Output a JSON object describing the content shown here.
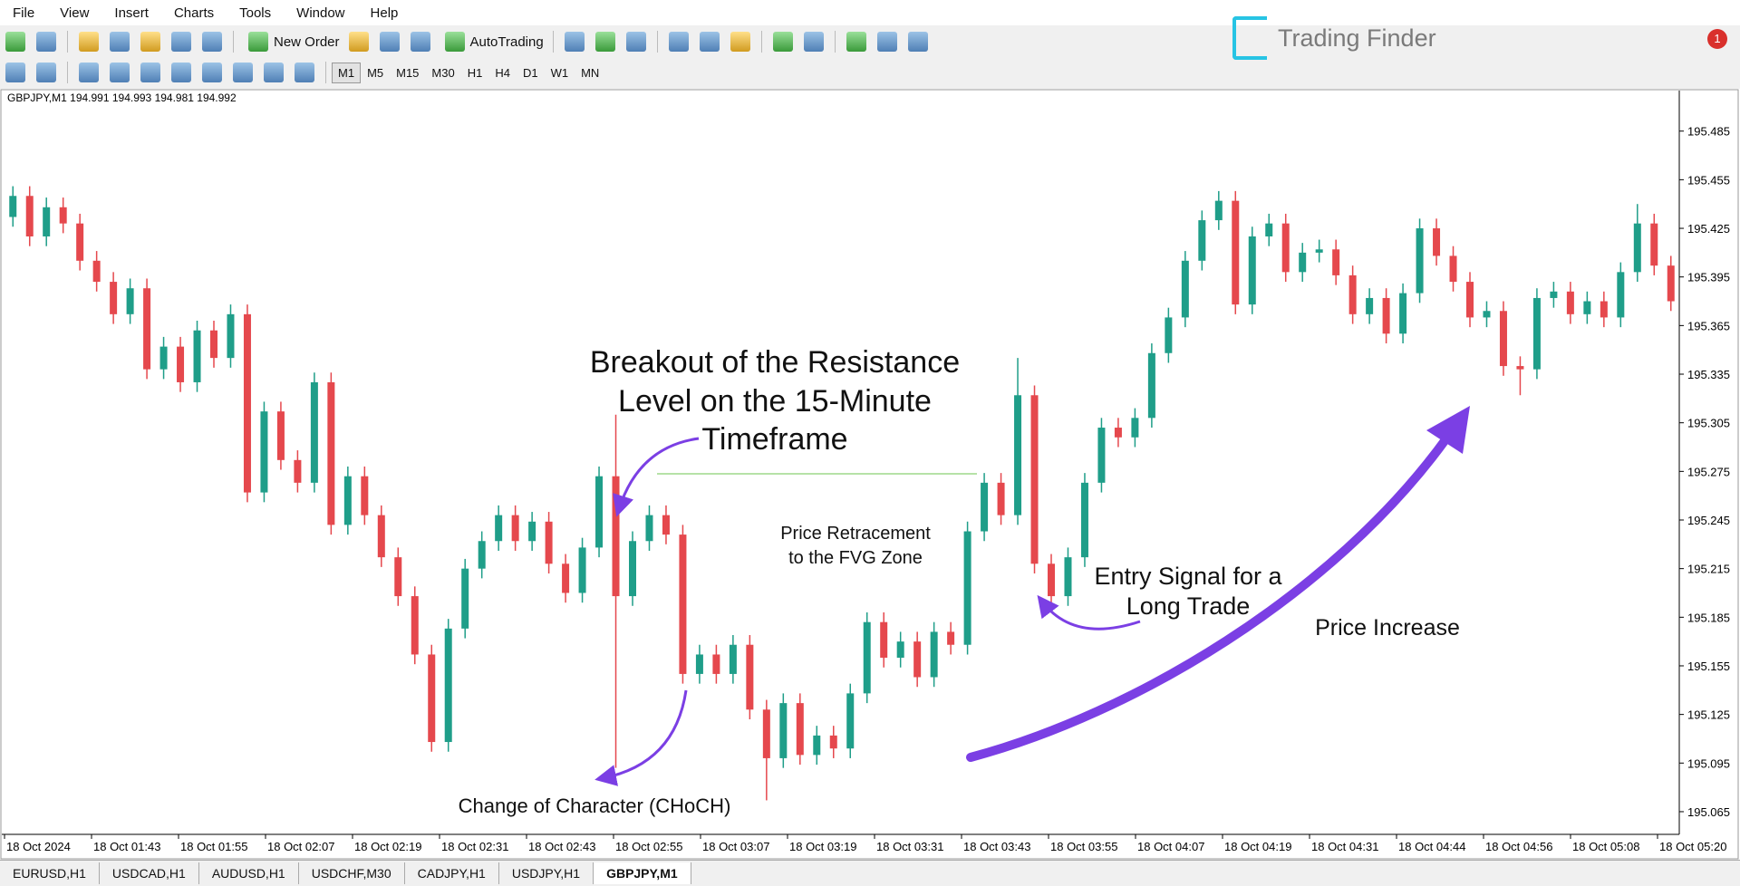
{
  "menu": [
    "File",
    "View",
    "Insert",
    "Charts",
    "Tools",
    "Window",
    "Help"
  ],
  "toolbar": {
    "new_order": "New Order",
    "auto_trading": "AutoTrading"
  },
  "timeframes": [
    "M1",
    "M5",
    "M15",
    "M30",
    "H1",
    "H4",
    "D1",
    "W1",
    "MN"
  ],
  "logo": "Trading Finder",
  "notification_count": "1",
  "chart_data": {
    "type": "candlestick",
    "header": "GBPJPY,M1  194.991 194.993 194.981 194.992",
    "bull_color": "#1f9e89",
    "bear_color": "#e5484d",
    "open": [
      195.432,
      195.445,
      195.42,
      195.438,
      195.428,
      195.405,
      195.392,
      195.372,
      195.388,
      195.338,
      195.352,
      195.33,
      195.362,
      195.345,
      195.372,
      195.262,
      195.312,
      195.282,
      195.268,
      195.33,
      195.242,
      195.272,
      195.248,
      195.222,
      195.198,
      195.162,
      195.108,
      195.178,
      195.215,
      195.232,
      195.248,
      195.232,
      195.244,
      195.218,
      195.2,
      195.228,
      195.272,
      195.198,
      195.232,
      195.248,
      195.236,
      195.15,
      195.162,
      195.15,
      195.168,
      195.128,
      195.098,
      195.132,
      195.1,
      195.112,
      195.104,
      195.138,
      195.182,
      195.16,
      195.17,
      195.148,
      195.176,
      195.168,
      195.238,
      195.268,
      195.248,
      195.322,
      195.218,
      195.198,
      195.222,
      195.268,
      195.302,
      195.296,
      195.308,
      195.348,
      195.37,
      195.405,
      195.43,
      195.442,
      195.378,
      195.42,
      195.428,
      195.398,
      195.41,
      195.412,
      195.396,
      195.372,
      195.382,
      195.36,
      195.385,
      195.425,
      195.408,
      195.392,
      195.37,
      195.374,
      195.34,
      195.338,
      195.382,
      195.386,
      195.372,
      195.38,
      195.37,
      195.398,
      195.428,
      195.402
    ],
    "high": [
      195.451,
      195.451,
      195.444,
      195.444,
      195.434,
      195.411,
      195.398,
      195.394,
      195.394,
      195.358,
      195.358,
      195.368,
      195.368,
      195.378,
      195.378,
      195.318,
      195.318,
      195.288,
      195.336,
      195.336,
      195.278,
      195.278,
      195.254,
      195.228,
      195.204,
      195.168,
      195.184,
      195.221,
      195.238,
      195.254,
      195.254,
      195.25,
      195.25,
      195.224,
      195.234,
      195.278,
      195.31,
      195.238,
      195.254,
      195.254,
      195.242,
      195.168,
      195.168,
      195.174,
      195.174,
      195.134,
      195.138,
      195.138,
      195.118,
      195.118,
      195.144,
      195.188,
      195.188,
      195.176,
      195.176,
      195.182,
      195.182,
      195.244,
      195.274,
      195.274,
      195.345,
      195.328,
      195.224,
      195.228,
      195.274,
      195.308,
      195.308,
      195.314,
      195.354,
      195.376,
      195.411,
      195.436,
      195.448,
      195.448,
      195.426,
      195.434,
      195.434,
      195.416,
      195.418,
      195.418,
      195.402,
      195.388,
      195.388,
      195.391,
      195.431,
      195.431,
      195.414,
      195.398,
      195.38,
      195.38,
      195.346,
      195.388,
      195.392,
      195.392,
      195.386,
      195.386,
      195.404,
      195.44,
      195.434,
      195.408
    ],
    "low": [
      195.426,
      195.414,
      195.414,
      195.422,
      195.399,
      195.386,
      195.366,
      195.366,
      195.332,
      195.332,
      195.324,
      195.324,
      195.339,
      195.339,
      195.256,
      195.256,
      195.276,
      195.262,
      195.262,
      195.236,
      195.236,
      195.242,
      195.216,
      195.192,
      195.156,
      195.102,
      195.102,
      195.172,
      195.209,
      195.226,
      195.226,
      195.226,
      195.212,
      195.194,
      195.194,
      195.222,
      195.092,
      195.192,
      195.226,
      195.23,
      195.144,
      195.144,
      195.144,
      195.144,
      195.122,
      195.072,
      195.092,
      195.094,
      195.094,
      195.098,
      195.098,
      195.132,
      195.154,
      195.154,
      195.142,
      195.142,
      195.162,
      195.162,
      195.232,
      195.242,
      195.242,
      195.212,
      195.192,
      195.192,
      195.216,
      195.262,
      195.29,
      195.29,
      195.302,
      195.342,
      195.364,
      195.399,
      195.424,
      195.372,
      195.372,
      195.414,
      195.392,
      195.392,
      195.404,
      195.39,
      195.366,
      195.366,
      195.354,
      195.354,
      195.379,
      195.402,
      195.386,
      195.364,
      195.364,
      195.334,
      195.322,
      195.332,
      195.376,
      195.366,
      195.366,
      195.364,
      195.364,
      195.392,
      195.396,
      195.374
    ],
    "close": [
      195.445,
      195.42,
      195.438,
      195.428,
      195.405,
      195.392,
      195.372,
      195.388,
      195.338,
      195.352,
      195.33,
      195.362,
      195.345,
      195.372,
      195.262,
      195.312,
      195.282,
      195.268,
      195.33,
      195.242,
      195.272,
      195.248,
      195.222,
      195.198,
      195.162,
      195.108,
      195.178,
      195.215,
      195.232,
      195.248,
      195.232,
      195.244,
      195.218,
      195.2,
      195.228,
      195.272,
      195.198,
      195.232,
      195.248,
      195.236,
      195.15,
      195.162,
      195.15,
      195.168,
      195.128,
      195.098,
      195.132,
      195.1,
      195.112,
      195.104,
      195.138,
      195.182,
      195.16,
      195.17,
      195.148,
      195.176,
      195.168,
      195.238,
      195.268,
      195.248,
      195.322,
      195.218,
      195.198,
      195.222,
      195.268,
      195.302,
      195.296,
      195.308,
      195.348,
      195.37,
      195.405,
      195.43,
      195.442,
      195.378,
      195.42,
      195.428,
      195.398,
      195.41,
      195.412,
      195.396,
      195.372,
      195.382,
      195.36,
      195.385,
      195.425,
      195.408,
      195.392,
      195.37,
      195.374,
      195.34,
      195.338,
      195.382,
      195.386,
      195.372,
      195.38,
      195.37,
      195.398,
      195.428,
      195.402,
      195.38
    ],
    "ylim": [
      195.051,
      195.51
    ],
    "yticks": [
      195.485,
      195.455,
      195.425,
      195.395,
      195.365,
      195.335,
      195.305,
      195.275,
      195.245,
      195.215,
      195.185,
      195.155,
      195.125,
      195.095,
      195.065
    ],
    "x_labels": [
      "18 Oct 2024",
      "18 Oct 01:43",
      "18 Oct 01:55",
      "18 Oct 02:07",
      "18 Oct 02:19",
      "18 Oct 02:31",
      "18 Oct 02:43",
      "18 Oct 02:55",
      "18 Oct 03:07",
      "18 Oct 03:19",
      "18 Oct 03:31",
      "18 Oct 03:43",
      "18 Oct 03:55",
      "18 Oct 04:07",
      "18 Oct 04:19",
      "18 Oct 04:31",
      "18 Oct 04:44",
      "18 Oct 04:56",
      "18 Oct 05:08",
      "18 Oct 05:20"
    ],
    "annotations": {
      "breakout": [
        "Breakout of the Resistance",
        "Level on the 15-Minute",
        "Timeframe"
      ],
      "retracement": [
        "Price Retracement",
        "to the FVG Zone"
      ],
      "entry": [
        "Entry Signal for a",
        "Long Trade"
      ],
      "increase": "Price Increase",
      "choch": "Change of Character (CHoCH)"
    }
  },
  "tabs": [
    "EURUSD,H1",
    "USDCAD,H1",
    "AUDUSD,H1",
    "USDCHF,M30",
    "CADJPY,H1",
    "USDJPY,H1",
    "GBPJPY,M1"
  ]
}
